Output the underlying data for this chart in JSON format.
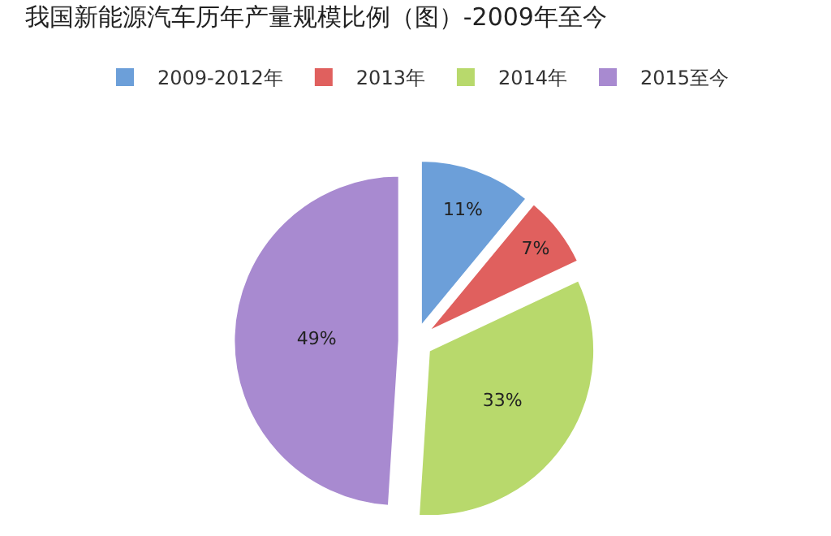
{
  "chart_data": {
    "type": "pie",
    "title": "我国新能源汽车历年产量规模比例（图）-2009年至今",
    "categories": [
      "2009-2012年",
      "2013年",
      "2014年",
      "2015至今"
    ],
    "values": [
      11,
      7,
      33,
      49
    ],
    "value_labels": [
      "11%",
      "7%",
      "33%",
      "49%"
    ],
    "colors": [
      "#6c9fd9",
      "#e0605e",
      "#b8d96c",
      "#a88ad0"
    ],
    "legend": "top"
  }
}
